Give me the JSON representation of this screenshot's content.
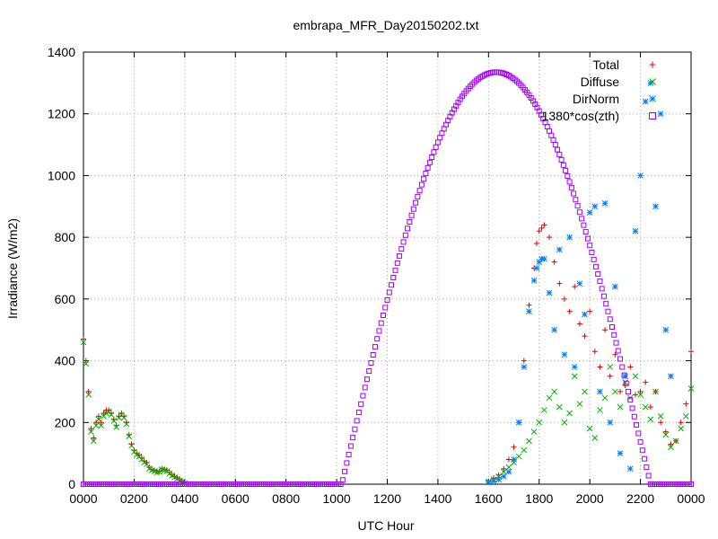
{
  "chart_data": {
    "type": "scatter",
    "title": "embrapa_MFR_Day20150202.txt",
    "xlabel": "UTC Hour",
    "ylabel": "Irradiance (W/m2)",
    "xlim": [
      0,
      24
    ],
    "ylim": [
      0,
      1400
    ],
    "x_ticks": [
      {
        "value": 0,
        "label": "0000"
      },
      {
        "value": 2,
        "label": "0200"
      },
      {
        "value": 4,
        "label": "0400"
      },
      {
        "value": 6,
        "label": "0600"
      },
      {
        "value": 8,
        "label": "0800"
      },
      {
        "value": 10,
        "label": "1000"
      },
      {
        "value": 12,
        "label": "1200"
      },
      {
        "value": 14,
        "label": "1400"
      },
      {
        "value": 16,
        "label": "1600"
      },
      {
        "value": 18,
        "label": "1800"
      },
      {
        "value": 20,
        "label": "2000"
      },
      {
        "value": 22,
        "label": "2200"
      },
      {
        "value": 24,
        "label": "0000"
      }
    ],
    "y_ticks": [
      0,
      200,
      400,
      600,
      800,
      1000,
      1200,
      1400
    ],
    "grid": true,
    "legend_position": "top-right",
    "series": [
      {
        "name": "Total",
        "color": "#e00000",
        "marker": "plus",
        "points": [
          [
            0.0,
            470
          ],
          [
            0.1,
            400
          ],
          [
            0.2,
            300
          ],
          [
            0.3,
            180
          ],
          [
            0.4,
            150
          ],
          [
            0.5,
            200
          ],
          [
            0.6,
            220
          ],
          [
            0.7,
            200
          ],
          [
            0.8,
            230
          ],
          [
            0.9,
            240
          ],
          [
            1.0,
            240
          ],
          [
            1.1,
            230
          ],
          [
            1.2,
            210
          ],
          [
            1.3,
            190
          ],
          [
            1.4,
            220
          ],
          [
            1.5,
            230
          ],
          [
            1.6,
            220
          ],
          [
            1.7,
            200
          ],
          [
            1.8,
            160
          ],
          [
            1.9,
            130
          ],
          [
            2.0,
            110
          ],
          [
            2.1,
            100
          ],
          [
            2.2,
            95
          ],
          [
            2.3,
            85
          ],
          [
            2.4,
            75
          ],
          [
            2.5,
            70
          ],
          [
            2.6,
            55
          ],
          [
            2.7,
            48
          ],
          [
            2.8,
            45
          ],
          [
            2.9,
            40
          ],
          [
            3.0,
            42
          ],
          [
            3.1,
            50
          ],
          [
            3.2,
            48
          ],
          [
            3.3,
            45
          ],
          [
            3.4,
            38
          ],
          [
            3.5,
            30
          ],
          [
            3.6,
            25
          ],
          [
            3.7,
            20
          ],
          [
            3.8,
            15
          ],
          [
            3.9,
            10
          ],
          [
            4.0,
            5
          ],
          [
            16.0,
            10
          ],
          [
            16.2,
            20
          ],
          [
            16.4,
            30
          ],
          [
            16.6,
            50
          ],
          [
            16.8,
            80
          ],
          [
            17.0,
            120
          ],
          [
            17.2,
            200
          ],
          [
            17.4,
            400
          ],
          [
            17.6,
            580
          ],
          [
            17.8,
            700
          ],
          [
            17.9,
            780
          ],
          [
            18.0,
            820
          ],
          [
            18.1,
            830
          ],
          [
            18.2,
            840
          ],
          [
            18.4,
            800
          ],
          [
            18.6,
            720
          ],
          [
            18.8,
            650
          ],
          [
            19.0,
            600
          ],
          [
            19.2,
            560
          ],
          [
            19.4,
            640
          ],
          [
            19.6,
            520
          ],
          [
            19.8,
            480
          ],
          [
            20.0,
            560
          ],
          [
            20.2,
            430
          ],
          [
            20.4,
            380
          ],
          [
            20.6,
            500
          ],
          [
            20.8,
            350
          ],
          [
            21.0,
            420
          ],
          [
            21.2,
            300
          ],
          [
            21.4,
            320
          ],
          [
            21.6,
            380
          ],
          [
            21.8,
            290
          ],
          [
            22.0,
            300
          ],
          [
            22.2,
            330
          ],
          [
            22.4,
            250
          ],
          [
            22.6,
            300
          ],
          [
            22.8,
            200
          ],
          [
            23.0,
            170
          ],
          [
            23.2,
            130
          ],
          [
            23.4,
            140
          ],
          [
            23.6,
            200
          ],
          [
            23.8,
            260
          ],
          [
            24.0,
            430
          ]
        ]
      },
      {
        "name": "Diffuse",
        "color": "#00b000",
        "marker": "cross",
        "points": [
          [
            0.0,
            460
          ],
          [
            0.1,
            390
          ],
          [
            0.2,
            290
          ],
          [
            0.3,
            170
          ],
          [
            0.4,
            140
          ],
          [
            0.5,
            190
          ],
          [
            0.6,
            210
          ],
          [
            0.7,
            190
          ],
          [
            0.8,
            220
          ],
          [
            0.9,
            230
          ],
          [
            1.0,
            235
          ],
          [
            1.1,
            225
          ],
          [
            1.2,
            205
          ],
          [
            1.3,
            185
          ],
          [
            1.4,
            215
          ],
          [
            1.5,
            225
          ],
          [
            1.6,
            215
          ],
          [
            1.7,
            195
          ],
          [
            1.8,
            155
          ],
          [
            1.9,
            125
          ],
          [
            2.0,
            105
          ],
          [
            2.1,
            95
          ],
          [
            2.2,
            90
          ],
          [
            2.3,
            80
          ],
          [
            2.4,
            70
          ],
          [
            2.5,
            65
          ],
          [
            2.6,
            50
          ],
          [
            2.7,
            45
          ],
          [
            2.8,
            42
          ],
          [
            2.9,
            38
          ],
          [
            3.0,
            40
          ],
          [
            3.1,
            48
          ],
          [
            3.2,
            45
          ],
          [
            3.3,
            42
          ],
          [
            3.4,
            35
          ],
          [
            3.5,
            28
          ],
          [
            3.6,
            22
          ],
          [
            3.7,
            18
          ],
          [
            3.8,
            12
          ],
          [
            3.9,
            8
          ],
          [
            4.0,
            3
          ],
          [
            16.0,
            8
          ],
          [
            16.2,
            15
          ],
          [
            16.4,
            25
          ],
          [
            16.6,
            40
          ],
          [
            16.8,
            55
          ],
          [
            17.0,
            70
          ],
          [
            17.2,
            90
          ],
          [
            17.4,
            110
          ],
          [
            17.6,
            140
          ],
          [
            17.8,
            170
          ],
          [
            18.0,
            200
          ],
          [
            18.2,
            240
          ],
          [
            18.4,
            280
          ],
          [
            18.6,
            300
          ],
          [
            18.8,
            250
          ],
          [
            19.0,
            200
          ],
          [
            19.2,
            230
          ],
          [
            19.4,
            350
          ],
          [
            19.6,
            260
          ],
          [
            19.8,
            300
          ],
          [
            20.0,
            180
          ],
          [
            20.2,
            150
          ],
          [
            20.4,
            240
          ],
          [
            20.6,
            280
          ],
          [
            20.8,
            380
          ],
          [
            21.0,
            300
          ],
          [
            21.2,
            250
          ],
          [
            21.4,
            330
          ],
          [
            21.6,
            280
          ],
          [
            21.8,
            350
          ],
          [
            22.0,
            290
          ],
          [
            22.2,
            250
          ],
          [
            22.4,
            210
          ],
          [
            22.6,
            300
          ],
          [
            22.8,
            220
          ],
          [
            23.0,
            160
          ],
          [
            23.2,
            120
          ],
          [
            23.4,
            140
          ],
          [
            23.6,
            180
          ],
          [
            23.8,
            220
          ],
          [
            24.0,
            310
          ]
        ]
      },
      {
        "name": "DirNorm",
        "color": "#0080ff",
        "marker": "star",
        "points": [
          [
            16.0,
            5
          ],
          [
            16.2,
            10
          ],
          [
            16.4,
            15
          ],
          [
            16.6,
            25
          ],
          [
            16.8,
            40
          ],
          [
            17.0,
            80
          ],
          [
            17.2,
            200
          ],
          [
            17.4,
            380
          ],
          [
            17.6,
            560
          ],
          [
            17.8,
            660
          ],
          [
            17.9,
            700
          ],
          [
            18.0,
            720
          ],
          [
            18.1,
            730
          ],
          [
            18.2,
            730
          ],
          [
            18.4,
            620
          ],
          [
            18.6,
            500
          ],
          [
            18.8,
            760
          ],
          [
            19.0,
            420
          ],
          [
            19.2,
            800
          ],
          [
            19.4,
            380
          ],
          [
            19.6,
            650
          ],
          [
            19.8,
            550
          ],
          [
            20.0,
            880
          ],
          [
            20.2,
            900
          ],
          [
            20.4,
            300
          ],
          [
            20.6,
            910
          ],
          [
            20.8,
            200
          ],
          [
            21.0,
            640
          ],
          [
            21.2,
            100
          ],
          [
            21.4,
            350
          ],
          [
            21.6,
            50
          ],
          [
            21.8,
            820
          ],
          [
            22.0,
            1000
          ],
          [
            22.2,
            1240
          ],
          [
            22.4,
            1300
          ],
          [
            22.6,
            900
          ],
          [
            22.8,
            1200
          ],
          [
            23.0,
            500
          ],
          [
            23.2,
            350
          ]
        ]
      },
      {
        "name": "1380*cos(zth)",
        "color": "#a000ff",
        "marker": "square",
        "curve": {
          "rise": 10.2,
          "peak": 16.3,
          "set": 22.4,
          "peak_value": 1335
        },
        "night_value": 0
      }
    ]
  }
}
